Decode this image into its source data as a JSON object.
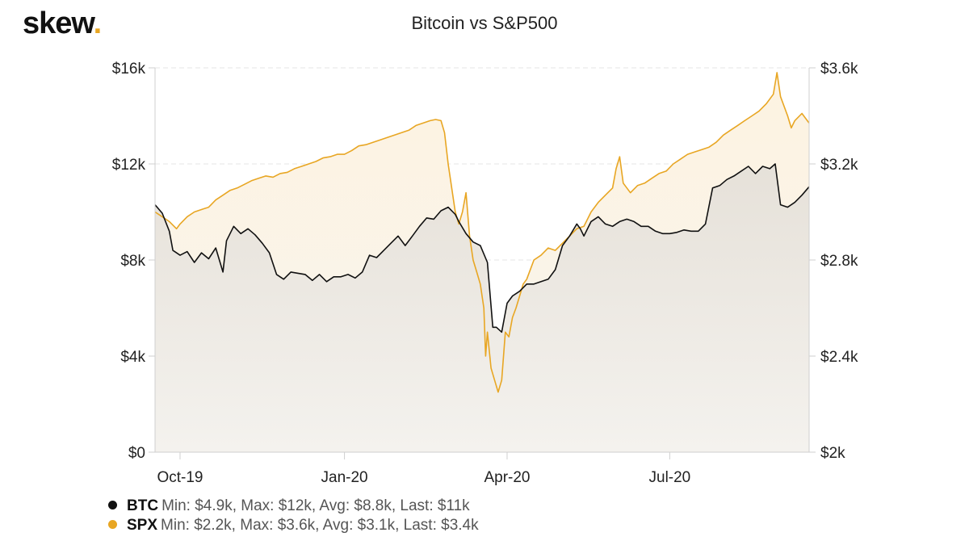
{
  "brand": {
    "name": "skew",
    "dot": "."
  },
  "chart_data": {
    "type": "line",
    "title": "Bitcoin vs S&P500",
    "x_ticks": [
      "Oct-19",
      "Jan-20",
      "Apr-20",
      "Jul-20"
    ],
    "x_tick_days": [
      14,
      106,
      197,
      288
    ],
    "total_days": 366,
    "left_axis": {
      "ticks": [
        "$0",
        "$4k",
        "$8k",
        "$12k",
        "$16k"
      ],
      "range": [
        0,
        16000
      ]
    },
    "right_axis": {
      "ticks": [
        "$2k",
        "$2.4k",
        "$2.8k",
        "$3.2k",
        "$3.6k"
      ],
      "range": [
        2000,
        3600
      ]
    },
    "grid": true,
    "colors": {
      "btc": "#111111",
      "spx": "#e8a623",
      "btc_fill": "#e6e0d7",
      "spx_fill": "#fbf0dc"
    },
    "series": [
      {
        "name": "BTC",
        "axis": "left",
        "points": [
          [
            0,
            10300
          ],
          [
            4,
            9950
          ],
          [
            8,
            9200
          ],
          [
            10,
            8400
          ],
          [
            14,
            8200
          ],
          [
            18,
            8350
          ],
          [
            22,
            7900
          ],
          [
            26,
            8300
          ],
          [
            30,
            8050
          ],
          [
            34,
            8500
          ],
          [
            38,
            7500
          ],
          [
            40,
            8800
          ],
          [
            44,
            9400
          ],
          [
            48,
            9100
          ],
          [
            52,
            9300
          ],
          [
            56,
            9050
          ],
          [
            60,
            8700
          ],
          [
            64,
            8300
          ],
          [
            68,
            7400
          ],
          [
            72,
            7200
          ],
          [
            76,
            7500
          ],
          [
            80,
            7450
          ],
          [
            84,
            7400
          ],
          [
            88,
            7150
          ],
          [
            92,
            7400
          ],
          [
            96,
            7100
          ],
          [
            100,
            7300
          ],
          [
            104,
            7300
          ],
          [
            108,
            7400
          ],
          [
            112,
            7250
          ],
          [
            116,
            7500
          ],
          [
            120,
            8200
          ],
          [
            124,
            8100
          ],
          [
            128,
            8400
          ],
          [
            132,
            8700
          ],
          [
            136,
            9000
          ],
          [
            140,
            8600
          ],
          [
            144,
            9000
          ],
          [
            148,
            9400
          ],
          [
            152,
            9750
          ],
          [
            156,
            9700
          ],
          [
            160,
            10050
          ],
          [
            164,
            10200
          ],
          [
            168,
            9900
          ],
          [
            170,
            9600
          ],
          [
            174,
            9100
          ],
          [
            178,
            8750
          ],
          [
            182,
            8600
          ],
          [
            186,
            7900
          ],
          [
            189,
            5200
          ],
          [
            191,
            5200
          ],
          [
            194,
            5000
          ],
          [
            197,
            6200
          ],
          [
            200,
            6500
          ],
          [
            204,
            6700
          ],
          [
            208,
            7000
          ],
          [
            212,
            7000
          ],
          [
            216,
            7100
          ],
          [
            220,
            7200
          ],
          [
            224,
            7600
          ],
          [
            228,
            8600
          ],
          [
            232,
            9000
          ],
          [
            236,
            9500
          ],
          [
            238,
            9300
          ],
          [
            240,
            9000
          ],
          [
            244,
            9600
          ],
          [
            248,
            9800
          ],
          [
            252,
            9500
          ],
          [
            256,
            9400
          ],
          [
            260,
            9600
          ],
          [
            264,
            9700
          ],
          [
            268,
            9600
          ],
          [
            272,
            9400
          ],
          [
            276,
            9400
          ],
          [
            280,
            9200
          ],
          [
            284,
            9100
          ],
          [
            288,
            9100
          ],
          [
            292,
            9150
          ],
          [
            296,
            9250
          ],
          [
            300,
            9200
          ],
          [
            304,
            9200
          ],
          [
            308,
            9500
          ],
          [
            312,
            11000
          ],
          [
            316,
            11100
          ],
          [
            320,
            11350
          ],
          [
            324,
            11500
          ],
          [
            328,
            11700
          ],
          [
            332,
            11900
          ],
          [
            336,
            11600
          ],
          [
            340,
            11900
          ],
          [
            344,
            11800
          ],
          [
            347,
            12000
          ],
          [
            350,
            10300
          ],
          [
            354,
            10200
          ],
          [
            358,
            10400
          ],
          [
            362,
            10700
          ],
          [
            366,
            11050
          ]
        ]
      },
      {
        "name": "SPX",
        "axis": "right",
        "points": [
          [
            0,
            3000
          ],
          [
            4,
            2980
          ],
          [
            8,
            2960
          ],
          [
            12,
            2930
          ],
          [
            14,
            2950
          ],
          [
            18,
            2980
          ],
          [
            22,
            3000
          ],
          [
            26,
            3010
          ],
          [
            30,
            3020
          ],
          [
            34,
            3050
          ],
          [
            38,
            3070
          ],
          [
            42,
            3090
          ],
          [
            46,
            3100
          ],
          [
            50,
            3115
          ],
          [
            54,
            3130
          ],
          [
            58,
            3140
          ],
          [
            62,
            3150
          ],
          [
            66,
            3145
          ],
          [
            70,
            3160
          ],
          [
            74,
            3165
          ],
          [
            78,
            3180
          ],
          [
            82,
            3190
          ],
          [
            86,
            3200
          ],
          [
            90,
            3210
          ],
          [
            94,
            3225
          ],
          [
            98,
            3230
          ],
          [
            102,
            3240
          ],
          [
            106,
            3240
          ],
          [
            110,
            3255
          ],
          [
            114,
            3275
          ],
          [
            118,
            3280
          ],
          [
            122,
            3290
          ],
          [
            126,
            3300
          ],
          [
            130,
            3310
          ],
          [
            134,
            3320
          ],
          [
            138,
            3330
          ],
          [
            142,
            3340
          ],
          [
            146,
            3360
          ],
          [
            150,
            3370
          ],
          [
            154,
            3380
          ],
          [
            157,
            3385
          ],
          [
            160,
            3380
          ],
          [
            162,
            3330
          ],
          [
            164,
            3200
          ],
          [
            166,
            3100
          ],
          [
            168,
            3000
          ],
          [
            170,
            2950
          ],
          [
            172,
            3000
          ],
          [
            174,
            3080
          ],
          [
            176,
            2900
          ],
          [
            178,
            2800
          ],
          [
            180,
            2750
          ],
          [
            182,
            2700
          ],
          [
            184,
            2600
          ],
          [
            185,
            2400
          ],
          [
            186,
            2500
          ],
          [
            188,
            2350
          ],
          [
            190,
            2300
          ],
          [
            192,
            2250
          ],
          [
            194,
            2300
          ],
          [
            196,
            2500
          ],
          [
            198,
            2480
          ],
          [
            200,
            2560
          ],
          [
            202,
            2600
          ],
          [
            204,
            2650
          ],
          [
            206,
            2700
          ],
          [
            208,
            2720
          ],
          [
            212,
            2800
          ],
          [
            216,
            2820
          ],
          [
            220,
            2850
          ],
          [
            224,
            2840
          ],
          [
            228,
            2870
          ],
          [
            232,
            2900
          ],
          [
            236,
            2930
          ],
          [
            240,
            2940
          ],
          [
            244,
            3000
          ],
          [
            248,
            3040
          ],
          [
            252,
            3070
          ],
          [
            256,
            3100
          ],
          [
            258,
            3180
          ],
          [
            260,
            3230
          ],
          [
            262,
            3120
          ],
          [
            266,
            3080
          ],
          [
            270,
            3110
          ],
          [
            274,
            3120
          ],
          [
            278,
            3140
          ],
          [
            282,
            3160
          ],
          [
            286,
            3170
          ],
          [
            290,
            3200
          ],
          [
            294,
            3220
          ],
          [
            298,
            3240
          ],
          [
            302,
            3250
          ],
          [
            306,
            3260
          ],
          [
            310,
            3270
          ],
          [
            314,
            3290
          ],
          [
            318,
            3320
          ],
          [
            322,
            3340
          ],
          [
            326,
            3360
          ],
          [
            330,
            3380
          ],
          [
            334,
            3400
          ],
          [
            338,
            3420
          ],
          [
            342,
            3450
          ],
          [
            346,
            3490
          ],
          [
            348,
            3580
          ],
          [
            350,
            3480
          ],
          [
            354,
            3400
          ],
          [
            356,
            3350
          ],
          [
            358,
            3380
          ],
          [
            362,
            3410
          ],
          [
            366,
            3370
          ]
        ]
      }
    ],
    "legend": [
      {
        "key": "BTC",
        "text": "Min: $4.9k, Max: $12k, Avg: $8.8k, Last: $11k"
      },
      {
        "key": "SPX",
        "text": "Min: $2.2k, Max: $3.6k, Avg: $3.1k, Last: $3.4k"
      }
    ]
  }
}
